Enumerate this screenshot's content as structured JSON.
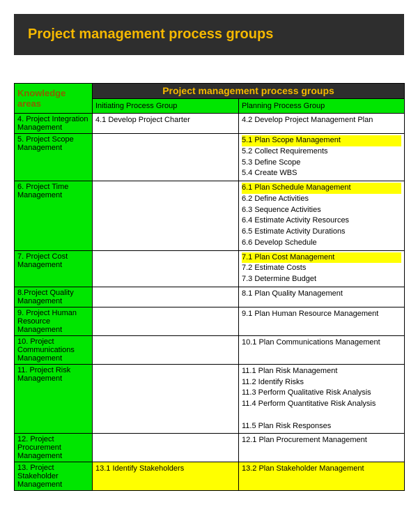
{
  "header": {
    "title": "Project management process groups"
  },
  "colors": {
    "header_bg": "#2e2e2e",
    "accent_text": "#f5b800",
    "green": "#00e600",
    "highlight": "#ffff00",
    "border": "#000000",
    "bg": "#ffffff"
  },
  "table": {
    "ka_header": "Knowledge areas",
    "top_header": "Project management process groups",
    "sub_headers": {
      "initiating": "Initiating Process Group",
      "planning": "Planning Process Group"
    },
    "rows": [
      {
        "ka": "4. Project Integration Management",
        "initiating": [
          {
            "text": "4.1 Develop Project Charter",
            "hl": false
          }
        ],
        "planning": [
          {
            "text": "4.2 Develop Project Management Plan",
            "hl": false
          }
        ]
      },
      {
        "ka": "5. Project Scope Management",
        "initiating": [],
        "planning": [
          {
            "text": "5.1 Plan Scope Management",
            "hl": true
          },
          {
            "text": "5.2 Collect Requirements",
            "hl": false
          },
          {
            "text": "5.3 Define Scope",
            "hl": false
          },
          {
            "text": "5.4 Create WBS",
            "hl": false
          }
        ]
      },
      {
        "ka": "6. Project Time Management",
        "initiating": [],
        "planning": [
          {
            "text": "6.1 Plan Schedule Management",
            "hl": true
          },
          {
            "text": "6.2 Define Activities",
            "hl": false
          },
          {
            "text": "6.3 Sequence Activities",
            "hl": false
          },
          {
            "text": "6.4 Estimate Activity Resources",
            "hl": false
          },
          {
            "text": "6.5 Estimate Activity Durations",
            "hl": false
          },
          {
            "text": "6.6 Develop Schedule",
            "hl": false
          }
        ]
      },
      {
        "ka": "7. Project Cost Management",
        "initiating": [],
        "planning": [
          {
            "text": "7.1 Plan Cost Management",
            "hl": true
          },
          {
            "text": "7.2 Estimate Costs",
            "hl": false
          },
          {
            "text": "7.3 Determine Budget",
            "hl": false
          }
        ]
      },
      {
        "ka": "8.Project Quality Management",
        "initiating": [],
        "planning": [
          {
            "text": "8.1 Plan Quality Management",
            "hl": false
          }
        ]
      },
      {
        "ka": "9. Project Human Resource Management",
        "initiating": [],
        "planning": [
          {
            "text": "9.1 Plan Human Resource Management",
            "hl": false
          }
        ]
      },
      {
        "ka": "10. Project Communications Management",
        "initiating": [],
        "planning": [
          {
            "text": "10.1 Plan Communications Management",
            "hl": false
          }
        ]
      },
      {
        "ka": "11. Project Risk Management",
        "initiating": [],
        "planning": [
          {
            "text": "11.1 Plan Risk Management",
            "hl": false
          },
          {
            "text": "11.2 Identify Risks",
            "hl": false
          },
          {
            "text": "11.3 Perform Qualitative Risk Analysis",
            "hl": false
          },
          {
            "text": "11.4 Perform Quantitative Risk Analysis",
            "hl": false
          },
          {
            "text": " ",
            "hl": false
          },
          {
            "text": "11.5 Plan Risk Responses",
            "hl": false
          }
        ]
      },
      {
        "ka": "12. Project Procurement Management",
        "initiating": [],
        "planning": [
          {
            "text": "12.1 Plan Procurement Management",
            "hl": false
          }
        ]
      },
      {
        "ka": "13. Project Stakeholder Management",
        "initiating": [
          {
            "text": "13.1 Identify Stakeholders",
            "hl": true
          }
        ],
        "planning": [
          {
            "text": "13.2 Plan Stakeholder Management",
            "hl": true
          }
        ]
      }
    ]
  }
}
